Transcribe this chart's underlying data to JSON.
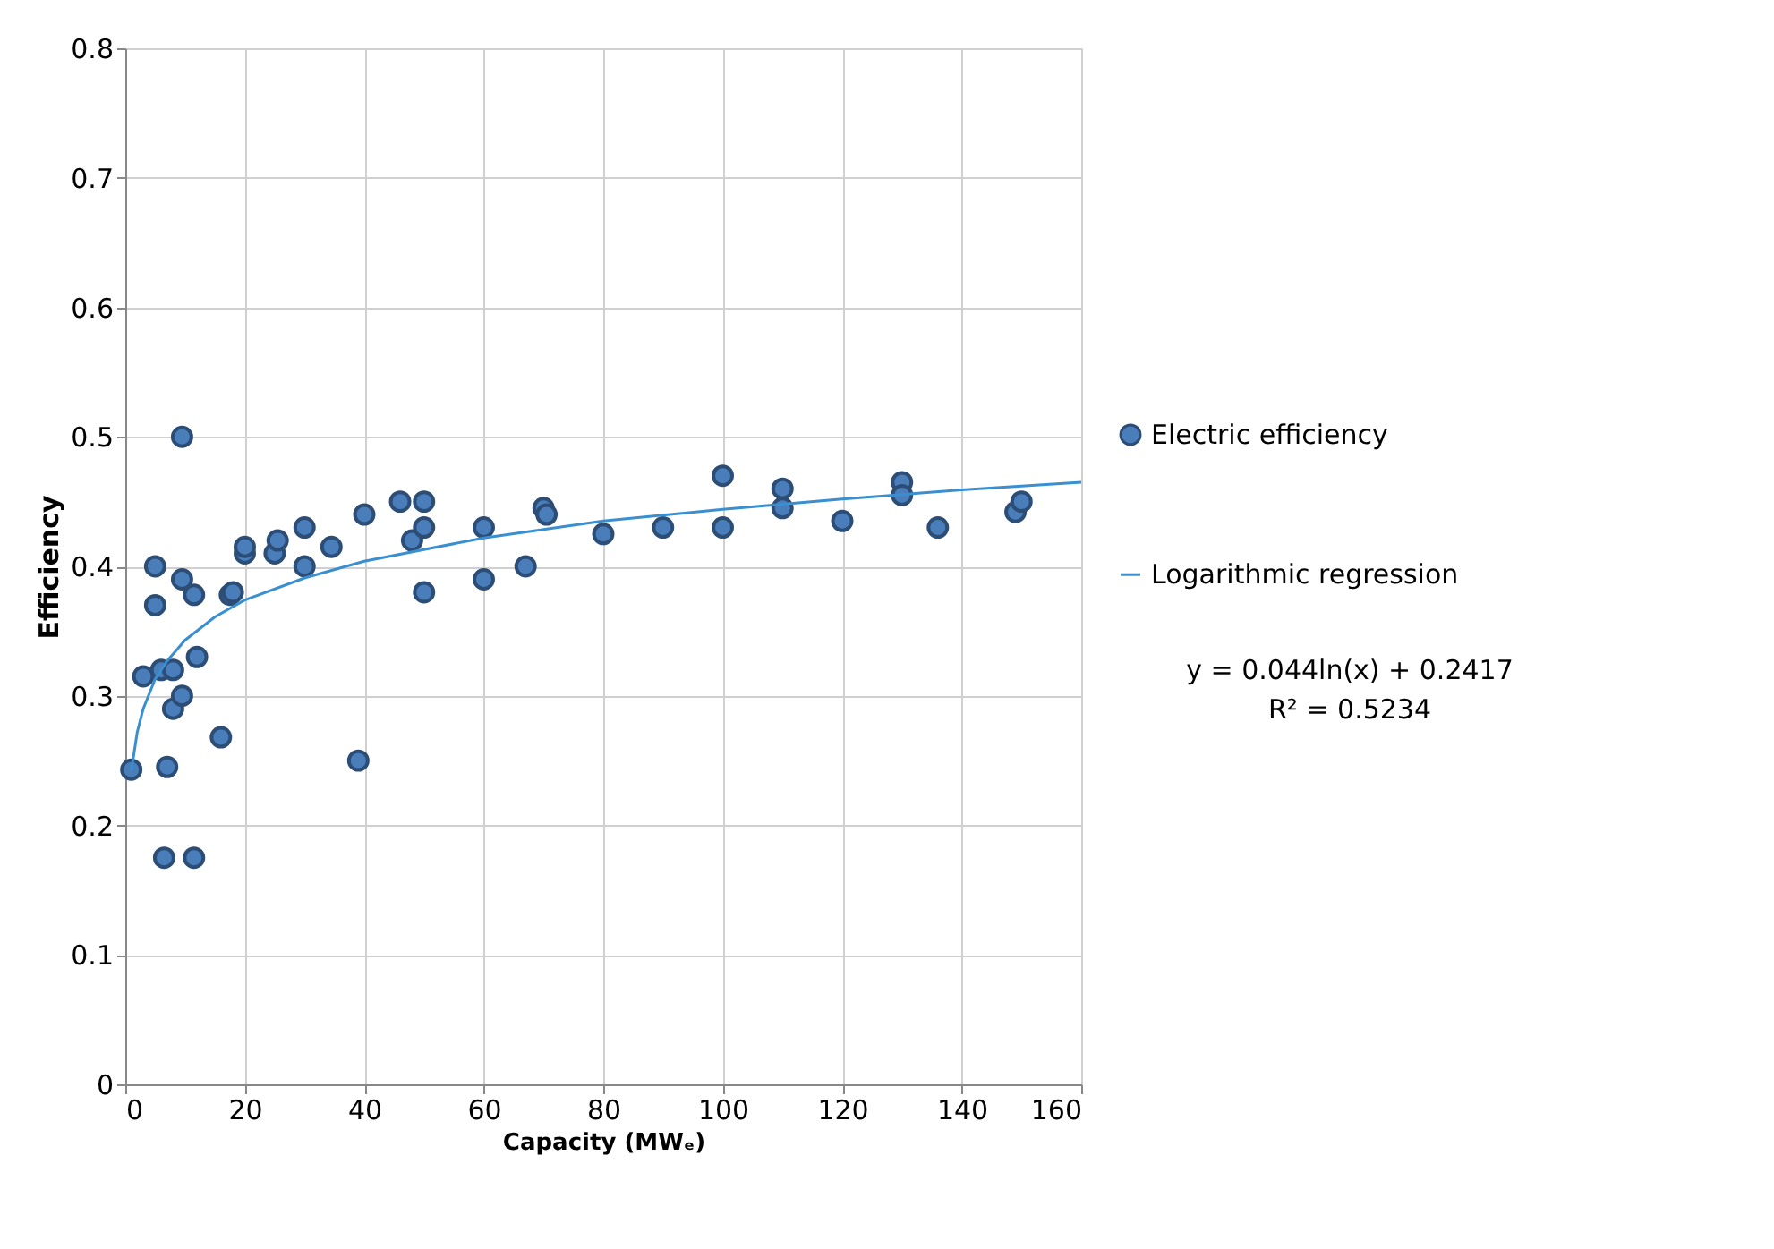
{
  "chart_data": {
    "type": "scatter",
    "xlabel": "Capacity (MWₑ)",
    "ylabel": "Efficiency",
    "xlim": [
      0,
      160
    ],
    "xticks": [
      0,
      20,
      40,
      60,
      80,
      100,
      120,
      140,
      160
    ],
    "ylim": [
      0,
      0.8
    ],
    "yticks": [
      {
        "value": 0,
        "label": "0"
      },
      0.1,
      0.2,
      0.3,
      0.4,
      0.5,
      0.6,
      0.7,
      0.8
    ],
    "grid": true,
    "legend": "right",
    "series": [
      {
        "name": "Electric efficiency",
        "marker": "circle",
        "color": "#4a7ebb",
        "x": [
          1,
          3,
          5,
          5,
          6,
          6.5,
          7,
          8,
          8,
          9.5,
          9.5,
          9.5,
          11.5,
          12,
          11.5,
          16,
          17.5,
          18,
          20,
          20,
          25,
          25.5,
          30,
          30,
          34.5,
          39,
          40,
          46,
          48,
          50,
          50,
          50,
          60,
          60,
          67,
          70,
          70.5,
          80,
          90,
          100,
          100,
          110,
          110,
          120,
          130,
          130,
          136,
          149,
          150
        ],
        "values": [
          0.243,
          0.315,
          0.4,
          0.37,
          0.32,
          0.175,
          0.245,
          0.29,
          0.32,
          0.5,
          0.39,
          0.3,
          0.378,
          0.33,
          0.175,
          0.268,
          0.378,
          0.38,
          0.41,
          0.415,
          0.41,
          0.42,
          0.43,
          0.4,
          0.415,
          0.25,
          0.44,
          0.45,
          0.42,
          0.45,
          0.43,
          0.38,
          0.43,
          0.39,
          0.4,
          0.445,
          0.44,
          0.425,
          0.43,
          0.47,
          0.43,
          0.46,
          0.445,
          0.435,
          0.465,
          0.455,
          0.43,
          0.442,
          0.45
        ]
      },
      {
        "name": "Logarithmic regression",
        "type": "line",
        "color": "#3a8fd0",
        "line_style": "solid",
        "marker": "none",
        "x": [
          1,
          2,
          3,
          5,
          7,
          10,
          15,
          20,
          30,
          40,
          60,
          80,
          100,
          120,
          140,
          160
        ],
        "values": [
          0.242,
          0.272,
          0.29,
          0.313,
          0.327,
          0.343,
          0.361,
          0.374,
          0.391,
          0.404,
          0.422,
          0.435,
          0.444,
          0.452,
          0.459,
          0.465
        ]
      }
    ],
    "annotations": [
      "y = 0.044ln(x) + 0.2417",
      "R² = 0.5234"
    ]
  }
}
